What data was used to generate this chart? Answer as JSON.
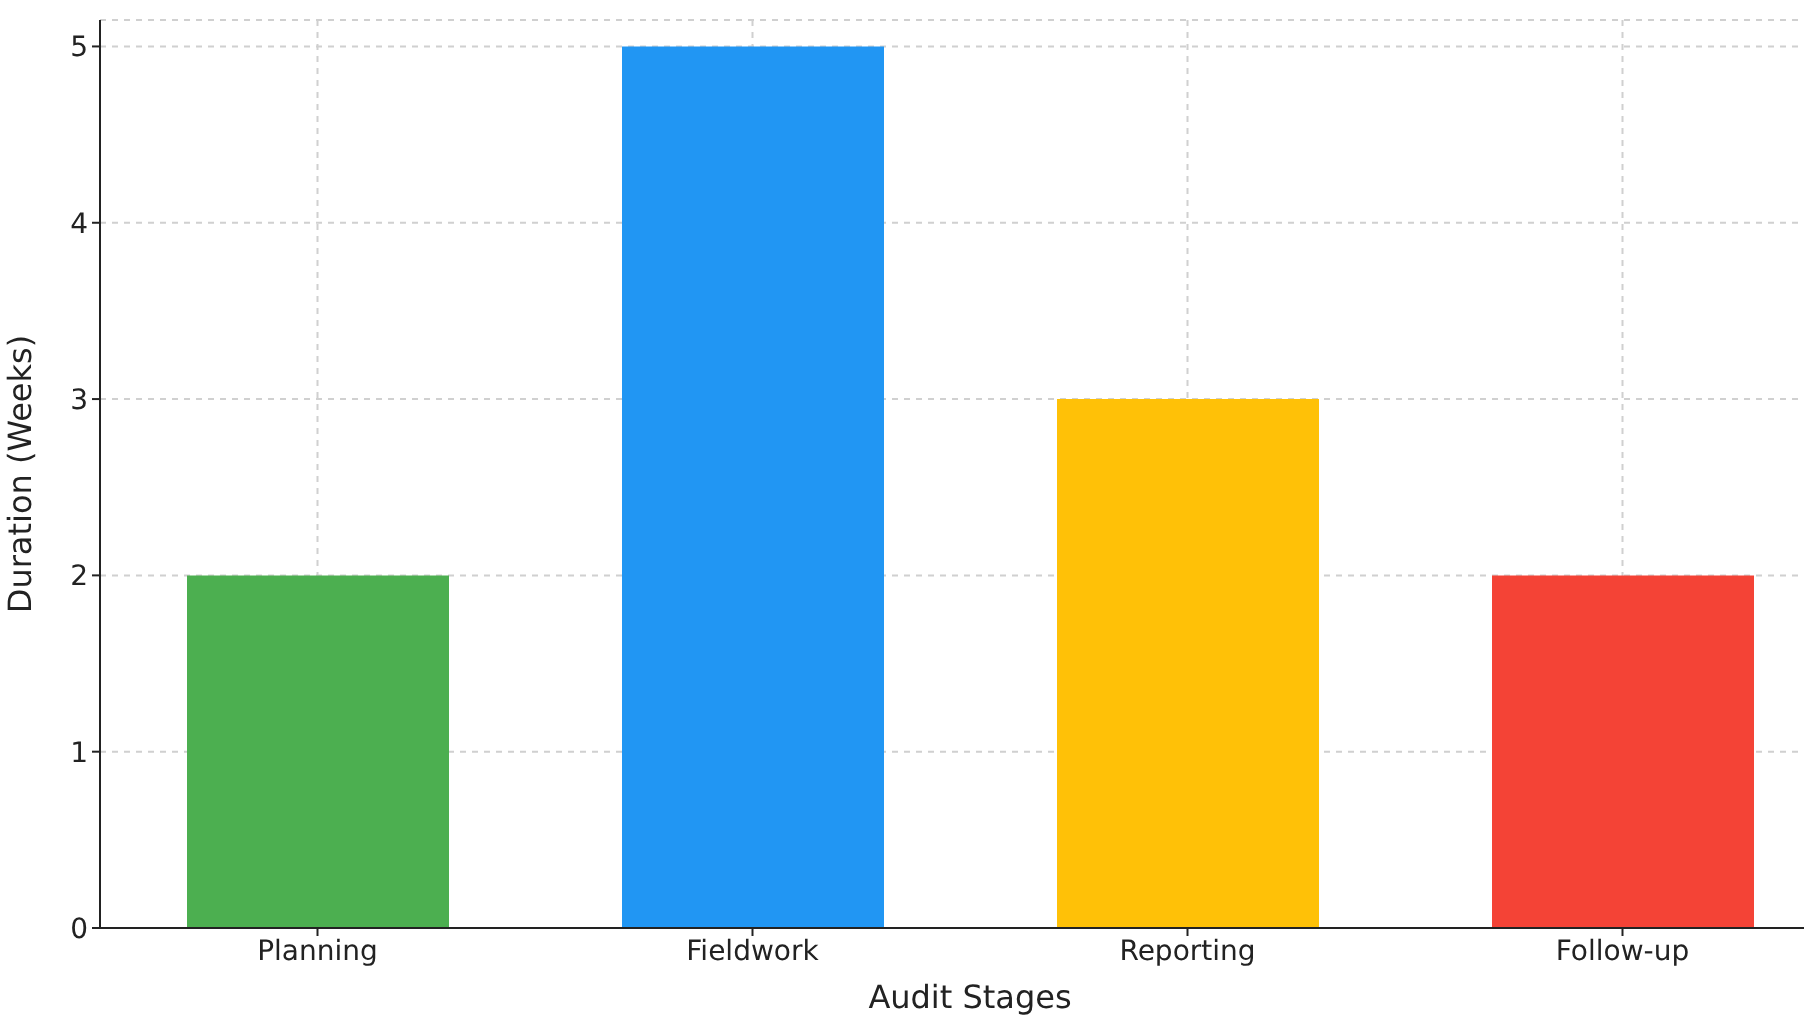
{
  "chart_data": {
    "type": "bar",
    "xlabel": "Audit Stages",
    "ylabel": "Duration (Weeks)",
    "categories": [
      "Planning",
      "Fieldwork",
      "Reporting",
      "Follow-up"
    ],
    "values": [
      2,
      5,
      3,
      2
    ],
    "colors": [
      "#4caf50",
      "#2196f3",
      "#ffc107",
      "#f44336"
    ],
    "ylim": [
      0,
      5.15
    ],
    "yticks": [
      0,
      1,
      2,
      3,
      4,
      5
    ],
    "grid": true
  }
}
